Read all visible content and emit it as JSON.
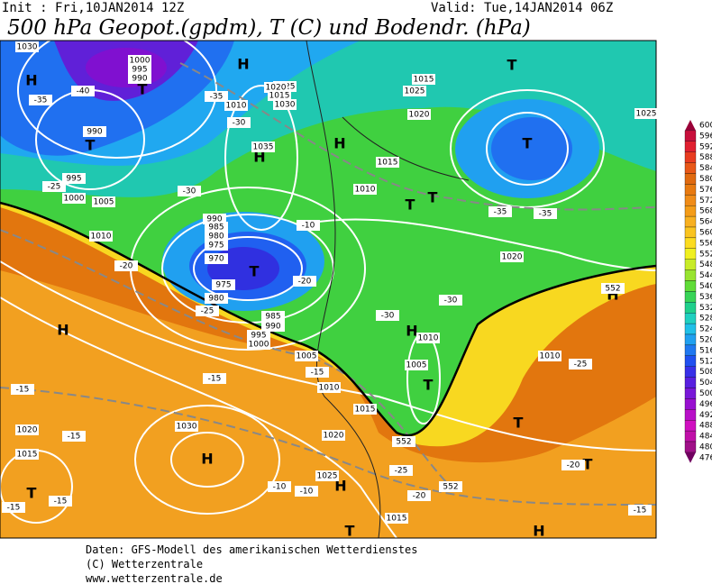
{
  "header": {
    "init": "Init : Fri,10JAN2014 12Z",
    "valid": "Valid: Tue,14JAN2014 06Z",
    "title": "500 hPa Geopot.(gpdm), T (C) und Bodendr. (hPa)"
  },
  "map_labels": [
    "H",
    "T",
    "T",
    "H",
    "T",
    "H",
    "T",
    "H",
    "T",
    "T",
    "H",
    "H",
    "H",
    "T",
    "H",
    "T",
    "T",
    "H",
    "T",
    "T",
    "H",
    "T",
    "1000",
    "995",
    "990",
    "990",
    "995",
    "1000",
    "1005",
    "1010",
    "1035",
    "1030",
    "1025",
    "1020",
    "1015",
    "1010",
    "990",
    "985",
    "980",
    "975",
    "970",
    "975",
    "980",
    "985",
    "990",
    "995",
    "1000",
    "1005",
    "1010",
    "1015",
    "1020",
    "1025",
    "1030",
    "1015",
    "1020",
    "1025",
    "1015",
    "1010",
    "1020",
    "1015",
    "1010",
    "1005",
    "1020",
    "1010",
    "1015",
    "1025",
    "1030",
    "-40",
    "-35",
    "-30",
    "-35",
    "-30",
    "-25",
    "-25",
    "-20",
    "-20",
    "-15",
    "-15",
    "-15",
    "-15",
    "-10",
    "-10",
    "-15",
    "-15",
    "-20",
    "-25",
    "-30",
    "-35",
    "-35",
    "-30",
    "-25",
    "-20",
    "-15",
    "-10",
    "552",
    "552",
    "552"
  ],
  "colorbar": {
    "ticks": [
      600,
      596,
      592,
      588,
      584,
      580,
      576,
      572,
      568,
      564,
      560,
      556,
      552,
      548,
      544,
      540,
      536,
      532,
      528,
      524,
      520,
      516,
      512,
      508,
      504,
      500,
      496,
      492,
      488,
      484,
      480,
      476
    ],
    "colors": [
      "#9a0038",
      "#c8103c",
      "#e02030",
      "#e83c20",
      "#e85818",
      "#e06a10",
      "#e87a10",
      "#f08c18",
      "#f49c18",
      "#f8b020",
      "#fac420",
      "#fcdc20",
      "#f0f020",
      "#c8ec28",
      "#98e430",
      "#60dc38",
      "#38d458",
      "#20d08c",
      "#20d0c0",
      "#20c0e8",
      "#20a0f0",
      "#2078f0",
      "#2050f0",
      "#3830e8",
      "#5820e0",
      "#7818d8",
      "#9810d0",
      "#b810c8",
      "#d010c0",
      "#c010a8",
      "#a01088",
      "#700060"
    ]
  },
  "footer": [
    "Daten: GFS-Modell des amerikanischen Wetterdienstes",
    "(C) Wetterzentrale",
    "www.wetterzentrale.de"
  ]
}
